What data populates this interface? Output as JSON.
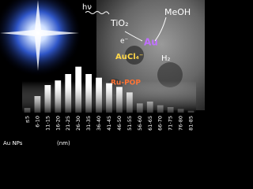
{
  "chart_data": {
    "type": "bar",
    "categories": [
      "≤5",
      "6-10",
      "11-15",
      "16-20",
      "21-25",
      "26-30",
      "31-35",
      "36-40",
      "41-45",
      "46-50",
      "51-55",
      "56-60",
      "61-65",
      "66-70",
      "71-75",
      "76-80",
      "81-85"
    ],
    "values": [
      5,
      18,
      30,
      35,
      42,
      50,
      42,
      38,
      32,
      28,
      22,
      10,
      12,
      8,
      6,
      4,
      2
    ],
    "color": "#ffffff",
    "ylim": [
      0,
      60
    ],
    "xlabel": "Au NPs",
    "xunit": "(nm)"
  },
  "labels": {
    "light": "hν",
    "semiconductor": "TiO₂",
    "electron": "e⁻",
    "metal": "Au",
    "solvent": "MeOH",
    "product": "H₂",
    "precursor": "AuCl₄⁻",
    "sensitizer": "Ru-POP"
  }
}
